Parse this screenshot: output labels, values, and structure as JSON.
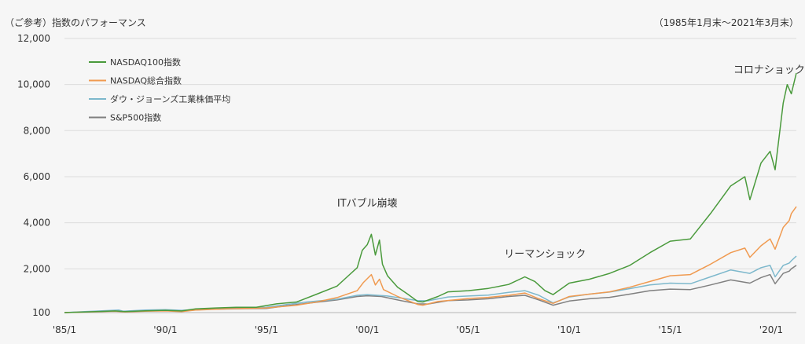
{
  "chart_data": {
    "type": "line",
    "title": "（ご参考）指数のパフォーマンス",
    "period_note": "（1985年1月末〜2021年3月末）",
    "x_tick_labels": [
      "'85/1",
      "'90/1",
      "'95/1",
      "'00/1",
      "'05/1",
      "'10/1",
      "'15/1",
      "'20/1"
    ],
    "x_tick_values": [
      1985,
      1990,
      1995,
      2000,
      2005,
      2010,
      2015,
      2020
    ],
    "y_tick_labels": [
      "100",
      "2,000",
      "4,000",
      "6,000",
      "8,000",
      "10,000",
      "12,000"
    ],
    "y_tick_values": [
      100,
      2000,
      4000,
      6000,
      8000,
      10000,
      12000
    ],
    "xlim": [
      1985.0,
      2021.25
    ],
    "ylim": [
      100,
      12000
    ],
    "grid": "horizontal",
    "legend_position": "top-left",
    "series": [
      {
        "name": "NASDAQ100指数",
        "color": "#4a9a3c",
        "points": [
          [
            1985.0,
            100
          ],
          [
            1986.0,
            125
          ],
          [
            1987.5,
            170
          ],
          [
            1988.0,
            145
          ],
          [
            1989.0,
            180
          ],
          [
            1990.0,
            200
          ],
          [
            1990.8,
            170
          ],
          [
            1991.5,
            260
          ],
          [
            1992.5,
            300
          ],
          [
            1993.5,
            330
          ],
          [
            1994.5,
            330
          ],
          [
            1995.5,
            480
          ],
          [
            1996.5,
            560
          ],
          [
            1997.5,
            900
          ],
          [
            1998.5,
            1250
          ],
          [
            1999.0,
            1650
          ],
          [
            1999.5,
            2050
          ],
          [
            1999.75,
            2800
          ],
          [
            2000.0,
            3050
          ],
          [
            2000.2,
            3500
          ],
          [
            2000.4,
            2600
          ],
          [
            2000.6,
            3250
          ],
          [
            2000.75,
            2200
          ],
          [
            2001.0,
            1700
          ],
          [
            2001.5,
            1200
          ],
          [
            2002.0,
            900
          ],
          [
            2002.5,
            580
          ],
          [
            2002.75,
            560
          ],
          [
            2003.5,
            800
          ],
          [
            2004.0,
            1000
          ],
          [
            2005.0,
            1050
          ],
          [
            2006.0,
            1150
          ],
          [
            2007.0,
            1320
          ],
          [
            2007.8,
            1650
          ],
          [
            2008.3,
            1450
          ],
          [
            2008.8,
            1050
          ],
          [
            2009.2,
            880
          ],
          [
            2010.0,
            1380
          ],
          [
            2011.0,
            1550
          ],
          [
            2012.0,
            1800
          ],
          [
            2013.0,
            2150
          ],
          [
            2014.0,
            2700
          ],
          [
            2015.0,
            3200
          ],
          [
            2016.0,
            3300
          ],
          [
            2017.0,
            4400
          ],
          [
            2018.0,
            5600
          ],
          [
            2018.7,
            6000
          ],
          [
            2018.95,
            5000
          ],
          [
            2019.5,
            6600
          ],
          [
            2019.95,
            7100
          ],
          [
            2020.2,
            6300
          ],
          [
            2020.6,
            9200
          ],
          [
            2020.8,
            10000
          ],
          [
            2021.0,
            9600
          ],
          [
            2021.25,
            10500
          ]
        ]
      },
      {
        "name": "NASDAQ総合指数",
        "color": "#f09a50",
        "points": [
          [
            1985.0,
            100
          ],
          [
            1986.0,
            120
          ],
          [
            1987.5,
            160
          ],
          [
            1988.0,
            130
          ],
          [
            1989.0,
            160
          ],
          [
            1990.0,
            170
          ],
          [
            1990.8,
            140
          ],
          [
            1991.5,
            210
          ],
          [
            1993.0,
            260
          ],
          [
            1995.0,
            300
          ],
          [
            1996.5,
            420
          ],
          [
            1997.5,
            560
          ],
          [
            1998.5,
            750
          ],
          [
            1999.5,
            1050
          ],
          [
            1999.8,
            1400
          ],
          [
            2000.2,
            1750
          ],
          [
            2000.4,
            1300
          ],
          [
            2000.6,
            1550
          ],
          [
            2000.8,
            1100
          ],
          [
            2001.5,
            800
          ],
          [
            2002.5,
            450
          ],
          [
            2002.75,
            420
          ],
          [
            2003.5,
            580
          ],
          [
            2005.0,
            710
          ],
          [
            2006.0,
            760
          ],
          [
            2007.0,
            850
          ],
          [
            2007.8,
            950
          ],
          [
            2008.5,
            700
          ],
          [
            2009.2,
            500
          ],
          [
            2010.0,
            800
          ],
          [
            2011.0,
            900
          ],
          [
            2012.0,
            1000
          ],
          [
            2013.0,
            1200
          ],
          [
            2014.0,
            1450
          ],
          [
            2015.0,
            1700
          ],
          [
            2016.0,
            1750
          ],
          [
            2017.0,
            2200
          ],
          [
            2018.0,
            2700
          ],
          [
            2018.7,
            2900
          ],
          [
            2018.95,
            2500
          ],
          [
            2019.5,
            3000
          ],
          [
            2019.95,
            3300
          ],
          [
            2020.2,
            2850
          ],
          [
            2020.6,
            3800
          ],
          [
            2020.9,
            4100
          ],
          [
            2021.0,
            4400
          ],
          [
            2021.25,
            4700
          ]
        ]
      },
      {
        "name": "ダウ・ジョーンズ工業株価平均",
        "color": "#7db8cc",
        "points": [
          [
            1985.0,
            100
          ],
          [
            1986.0,
            140
          ],
          [
            1987.7,
            210
          ],
          [
            1987.9,
            160
          ],
          [
            1989.0,
            210
          ],
          [
            1990.0,
            230
          ],
          [
            1990.8,
            200
          ],
          [
            1992.0,
            260
          ],
          [
            1994.0,
            310
          ],
          [
            1995.0,
            330
          ],
          [
            1996.0,
            450
          ],
          [
            1997.0,
            560
          ],
          [
            1998.5,
            680
          ],
          [
            1999.5,
            850
          ],
          [
            2000.0,
            880
          ],
          [
            2001.0,
            820
          ],
          [
            2002.5,
            620
          ],
          [
            2003.0,
            610
          ],
          [
            2004.0,
            780
          ],
          [
            2005.0,
            820
          ],
          [
            2006.0,
            860
          ],
          [
            2007.0,
            980
          ],
          [
            2007.8,
            1050
          ],
          [
            2008.5,
            850
          ],
          [
            2009.2,
            520
          ],
          [
            2010.0,
            780
          ],
          [
            2011.0,
            900
          ],
          [
            2012.0,
            990
          ],
          [
            2013.0,
            1140
          ],
          [
            2014.0,
            1300
          ],
          [
            2015.0,
            1380
          ],
          [
            2016.0,
            1350
          ],
          [
            2017.0,
            1650
          ],
          [
            2018.0,
            1950
          ],
          [
            2018.95,
            1800
          ],
          [
            2019.5,
            2050
          ],
          [
            2019.95,
            2150
          ],
          [
            2020.2,
            1650
          ],
          [
            2020.6,
            2150
          ],
          [
            2020.9,
            2250
          ],
          [
            2021.0,
            2350
          ],
          [
            2021.25,
            2550
          ]
        ]
      },
      {
        "name": "S&P500指数",
        "color": "#808080",
        "points": [
          [
            1985.0,
            100
          ],
          [
            1986.0,
            130
          ],
          [
            1987.7,
            190
          ],
          [
            1987.9,
            150
          ],
          [
            1989.0,
            190
          ],
          [
            1990.0,
            200
          ],
          [
            1990.8,
            180
          ],
          [
            1992.0,
            240
          ],
          [
            1994.0,
            270
          ],
          [
            1995.0,
            280
          ],
          [
            1996.0,
            400
          ],
          [
            1997.0,
            500
          ],
          [
            1998.5,
            650
          ],
          [
            1999.5,
            800
          ],
          [
            2000.0,
            830
          ],
          [
            2000.7,
            800
          ],
          [
            2001.5,
            650
          ],
          [
            2002.5,
            480
          ],
          [
            2003.0,
            470
          ],
          [
            2004.0,
            620
          ],
          [
            2005.0,
            650
          ],
          [
            2006.0,
            700
          ],
          [
            2007.0,
            800
          ],
          [
            2007.8,
            850
          ],
          [
            2008.5,
            650
          ],
          [
            2009.2,
            420
          ],
          [
            2010.0,
            600
          ],
          [
            2011.0,
            700
          ],
          [
            2012.0,
            760
          ],
          [
            2013.0,
            900
          ],
          [
            2014.0,
            1050
          ],
          [
            2015.0,
            1120
          ],
          [
            2016.0,
            1100
          ],
          [
            2017.0,
            1300
          ],
          [
            2018.0,
            1520
          ],
          [
            2018.95,
            1380
          ],
          [
            2019.5,
            1620
          ],
          [
            2019.95,
            1750
          ],
          [
            2020.2,
            1350
          ],
          [
            2020.6,
            1800
          ],
          [
            2020.9,
            1900
          ],
          [
            2021.0,
            2000
          ],
          [
            2021.25,
            2150
          ]
        ]
      }
    ],
    "annotations": [
      {
        "text": "ITバブル崩壊",
        "x": 2000.0,
        "y": 4700
      },
      {
        "text": "リーマンショック",
        "x": 2008.8,
        "y": 2500
      },
      {
        "text": "コロナショック",
        "x": 2019.9,
        "y": 10500
      }
    ]
  }
}
